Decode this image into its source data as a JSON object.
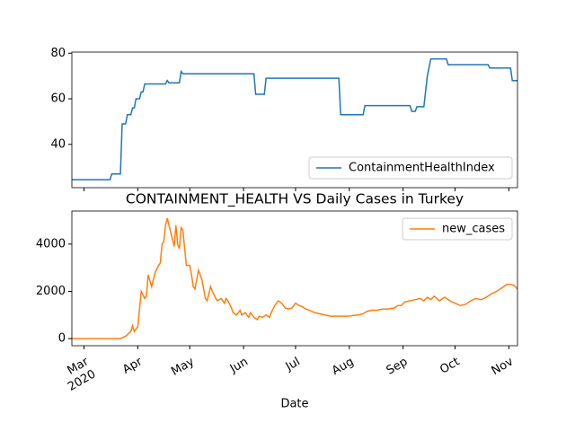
{
  "chart_data": [
    {
      "type": "line",
      "xlim": [
        0,
        257
      ],
      "ylim": [
        21,
        80.5
      ],
      "yticks": [
        40,
        60,
        80
      ],
      "xticks": [
        {
          "value": 7,
          "label": "Mar"
        },
        {
          "value": 38,
          "label": "Apr"
        },
        {
          "value": 68,
          "label": "May"
        },
        {
          "value": 99,
          "label": "Jun"
        },
        {
          "value": 129,
          "label": "Jul"
        },
        {
          "value": 160,
          "label": "Aug"
        },
        {
          "value": 191,
          "label": "Sep"
        },
        {
          "value": 221,
          "label": "Oct"
        },
        {
          "value": 252,
          "label": "Nov"
        }
      ],
      "legend": "lower right",
      "x": [
        0,
        22,
        23,
        28,
        29,
        31,
        32,
        34,
        35,
        36,
        37,
        39,
        40,
        41,
        42,
        54,
        55,
        56,
        62,
        63,
        64,
        105,
        106,
        111,
        112,
        154,
        155,
        168,
        169,
        195,
        196,
        198,
        199,
        203,
        205,
        207,
        216,
        217,
        240,
        241,
        253,
        254,
        257
      ],
      "series": [
        {
          "name": "ContainmentHealthIndex",
          "color": "#1f77b4",
          "values": [
            24.5,
            24.5,
            27,
            27,
            49,
            49,
            53,
            53,
            56,
            56,
            60,
            60,
            63,
            63,
            66.5,
            66.5,
            68,
            67,
            67,
            72,
            71,
            71,
            62,
            62,
            69,
            69,
            53,
            53,
            57,
            57,
            54.5,
            54.5,
            56.5,
            56.5,
            70,
            77.5,
            77.5,
            75,
            75,
            73.5,
            73.5,
            68,
            68
          ]
        }
      ]
    },
    {
      "type": "line",
      "title": "CONTAINMENT_HEALTH VS Daily Cases in Turkey",
      "xlabel": "Date",
      "xtick_year": "2020",
      "xlim": [
        0,
        257
      ],
      "ylim": [
        -300,
        5400
      ],
      "yticks": [
        0,
        2000,
        4000
      ],
      "xticks": [
        {
          "value": 7,
          "label": "Mar"
        },
        {
          "value": 38,
          "label": "Apr"
        },
        {
          "value": 68,
          "label": "May"
        },
        {
          "value": 99,
          "label": "Jun"
        },
        {
          "value": 129,
          "label": "Jul"
        },
        {
          "value": 160,
          "label": "Aug"
        },
        {
          "value": 191,
          "label": "Sep"
        },
        {
          "value": 221,
          "label": "Oct"
        },
        {
          "value": 252,
          "label": "Nov"
        }
      ],
      "legend": "upper right",
      "x": [
        0,
        28,
        31,
        34,
        35,
        36,
        38,
        40,
        42,
        43,
        44,
        46,
        48,
        50,
        51,
        52,
        53,
        54,
        55,
        57,
        58,
        59,
        60,
        61,
        62,
        63,
        64,
        66,
        68,
        69,
        70,
        71,
        73,
        75,
        76,
        77,
        78,
        79,
        80,
        81,
        83,
        84,
        86,
        88,
        89,
        90,
        92,
        93,
        95,
        97,
        98,
        100,
        102,
        103,
        105,
        107,
        108,
        110,
        112,
        114,
        115,
        117,
        119,
        121,
        123,
        125,
        127,
        129,
        131,
        133,
        135,
        137,
        140,
        143,
        146,
        149,
        152,
        155,
        159,
        162,
        165,
        168,
        170,
        173,
        176,
        179,
        182,
        186,
        188,
        190,
        192,
        195,
        198,
        201,
        203,
        205,
        207,
        209,
        212,
        215,
        218,
        221,
        224,
        227,
        230,
        233,
        236,
        239,
        242,
        245,
        247,
        249,
        251,
        253,
        255,
        257
      ],
      "series": [
        {
          "name": "new_cases",
          "color": "#ff7f0e",
          "values": [
            0,
            0,
            100,
            300,
            550,
            300,
            500,
            2000,
            1700,
            1800,
            2700,
            2200,
            2800,
            3100,
            3200,
            4000,
            4100,
            4800,
            5100,
            4500,
            4200,
            3900,
            4800,
            4000,
            3800,
            4700,
            4600,
            3100,
            3100,
            2700,
            2200,
            2100,
            2900,
            2500,
            2100,
            1700,
            1600,
            1900,
            2200,
            2000,
            1700,
            1600,
            1700,
            1500,
            1700,
            1600,
            1300,
            1100,
            1000,
            1200,
            1000,
            1100,
            900,
            1100,
            900,
            800,
            950,
            900,
            1000,
            900,
            1100,
            1400,
            1600,
            1500,
            1300,
            1250,
            1300,
            1500,
            1400,
            1350,
            1250,
            1200,
            1100,
            1050,
            1000,
            950,
            950,
            950,
            950,
            980,
            1000,
            1050,
            1150,
            1200,
            1200,
            1250,
            1250,
            1300,
            1400,
            1400,
            1550,
            1600,
            1650,
            1700,
            1600,
            1750,
            1650,
            1800,
            1600,
            1750,
            1600,
            1500,
            1400,
            1450,
            1600,
            1700,
            1650,
            1750,
            1900,
            2000,
            2100,
            2200,
            2300,
            2300,
            2250,
            2100
          ]
        }
      ]
    }
  ]
}
